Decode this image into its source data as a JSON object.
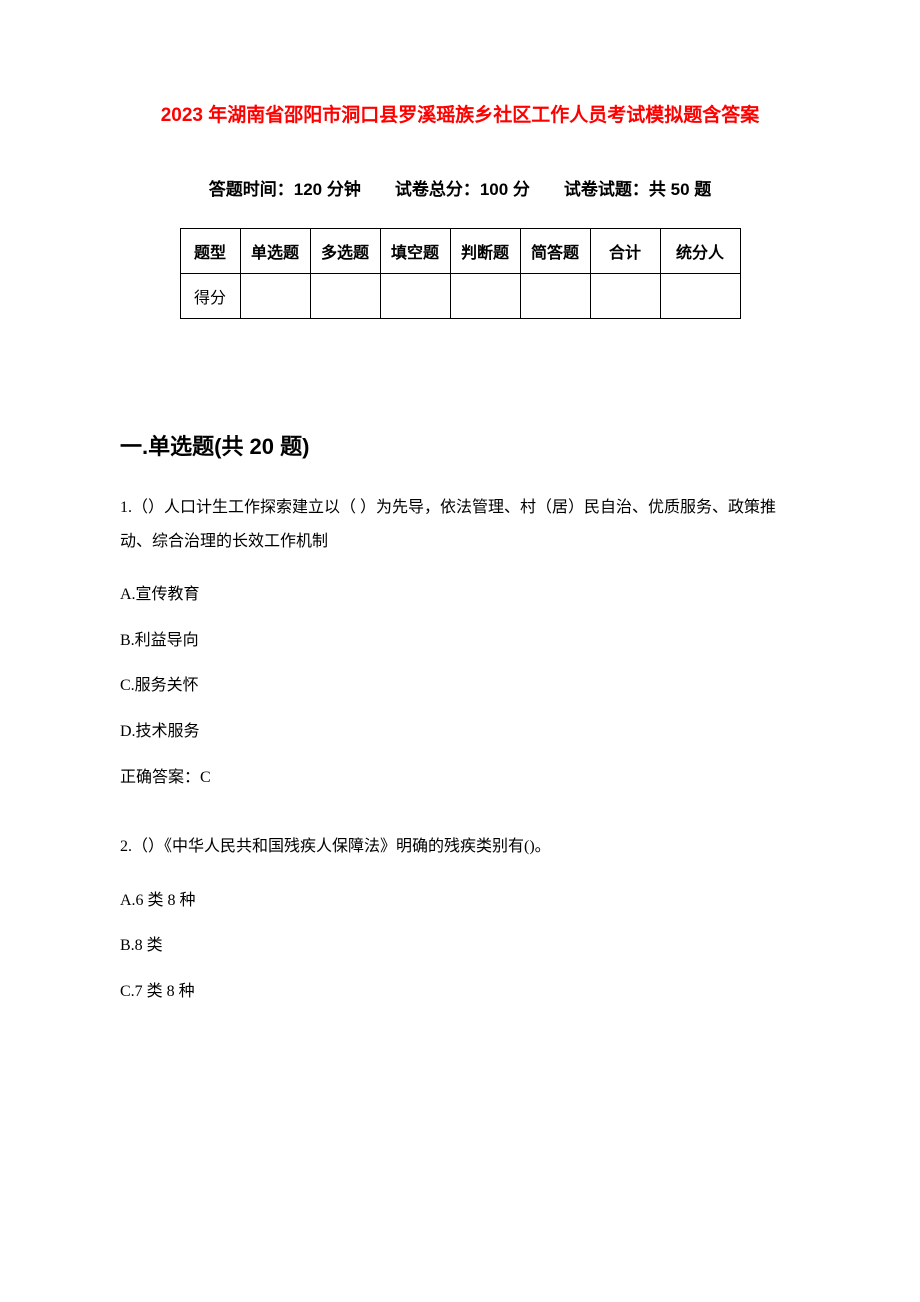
{
  "document": {
    "title": "2023 年湖南省邵阳市洞口县罗溪瑶族乡社区工作人员考试模拟题含答案",
    "title_color": "#ff0000",
    "title_fontsize": 19,
    "background_color": "#ffffff",
    "text_color": "#000000"
  },
  "exam_info": {
    "time_label": "答题时间：",
    "time_value": "120 分钟",
    "total_score_label": "试卷总分：",
    "total_score_value": "100 分",
    "question_count_label": "试卷试题：",
    "question_count_value": "共 50 题",
    "combined": "答题时间：120 分钟　　试卷总分：100 分　　试卷试题：共 50 题"
  },
  "score_table": {
    "border_color": "#000000",
    "header_row": {
      "label": "题型",
      "types": [
        "单选题",
        "多选题",
        "填空题",
        "判断题",
        "简答题"
      ],
      "total": "合计",
      "scorer": "统分人"
    },
    "score_row": {
      "label": "得分",
      "values": [
        "",
        "",
        "",
        "",
        ""
      ],
      "total": "",
      "scorer": ""
    },
    "column_widths": {
      "label": 60,
      "type": 70,
      "total": 70,
      "scorer": 80
    }
  },
  "sections": [
    {
      "heading": "一.单选题(共 20 题)",
      "heading_fontsize": 22,
      "questions": [
        {
          "number": "1.",
          "text": "1.（）人口计生工作探索建立以（ ）为先导，依法管理、村（居）民自治、优质服务、政策推动、综合治理的长效工作机制",
          "options": [
            {
              "label": "A.宣传教育"
            },
            {
              "label": "B.利益导向"
            },
            {
              "label": "C.服务关怀"
            },
            {
              "label": "D.技术服务"
            }
          ],
          "answer": "正确答案：C"
        },
        {
          "number": "2.",
          "text": "2.（）《中华人民共和国残疾人保障法》明确的残疾类别有()。",
          "options": [
            {
              "label": "A.6 类 8 种"
            },
            {
              "label": "B.8 类"
            },
            {
              "label": "C.7 类 8 种"
            }
          ],
          "answer": ""
        }
      ]
    }
  ]
}
